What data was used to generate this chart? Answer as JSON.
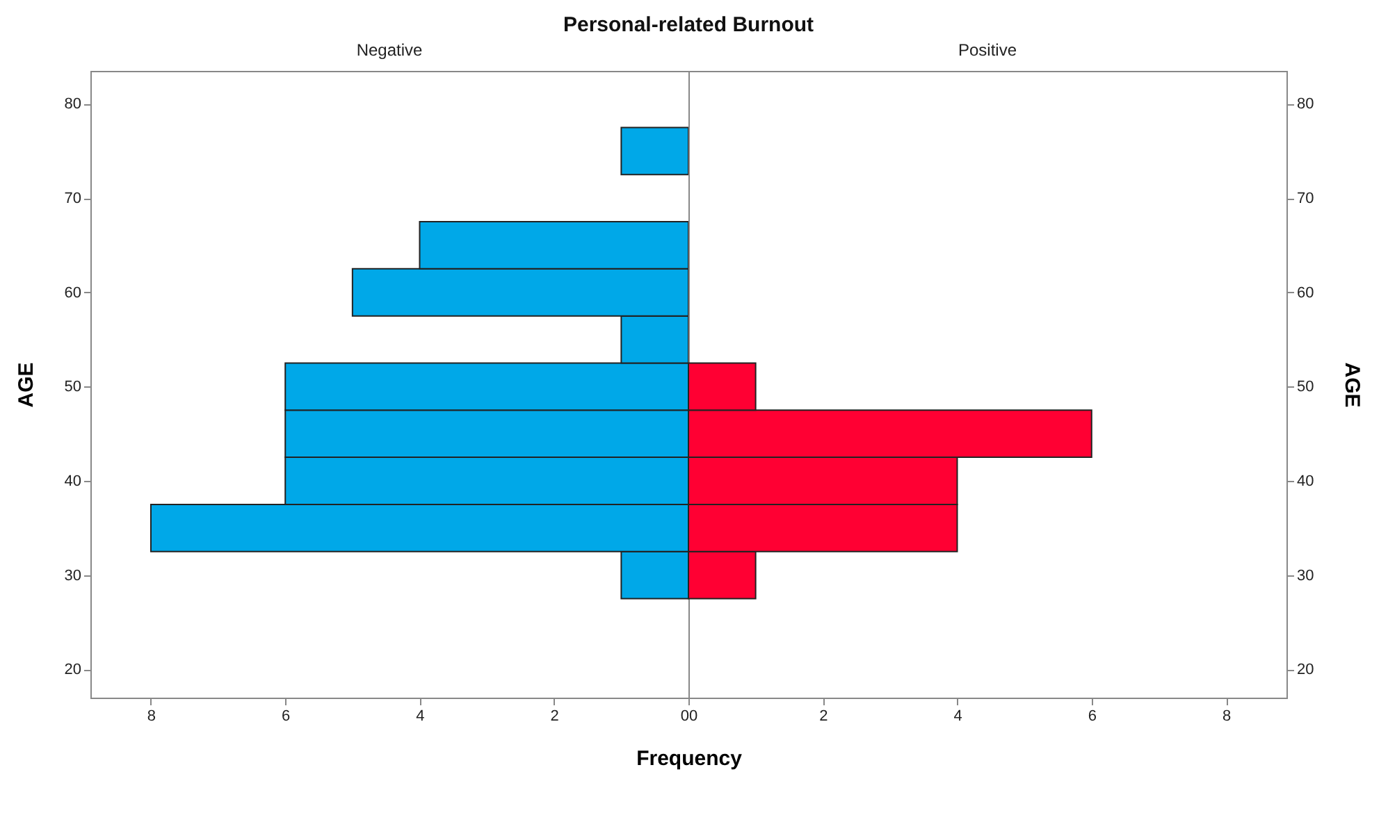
{
  "chart_data": [
    {
      "type": "histogram",
      "title": "Personal-related Burnout",
      "subtitle": "Negative",
      "ylabel": "AGE",
      "orientation": "horizontal",
      "bins": [
        27.5,
        32.5,
        37.5,
        42.5,
        47.5,
        52.5,
        57.5,
        62.5,
        67.5,
        72.5,
        77.5
      ],
      "values": [
        1,
        8,
        6,
        6,
        6,
        1,
        5,
        4,
        0,
        1
      ],
      "color": "#00a8e8",
      "xlim": [
        8.9,
        0
      ],
      "xticks": [
        8,
        6,
        4,
        2,
        0
      ],
      "ylim": [
        17,
        83.5
      ],
      "yticks": [
        20,
        30,
        40,
        50,
        60,
        70,
        80
      ],
      "grid": false
    },
    {
      "type": "histogram",
      "subtitle": "Positive",
      "ylabel": "AGE",
      "xlabel": "Frequency",
      "orientation": "horizontal",
      "bins": [
        27.5,
        32.5,
        37.5,
        42.5,
        47.5,
        52.5,
        57.5,
        62.5,
        67.5,
        72.5,
        77.5
      ],
      "values": [
        1,
        4,
        4,
        6,
        1,
        0,
        0,
        0,
        0,
        0
      ],
      "color": "#ff0033",
      "xlim": [
        0,
        8.9
      ],
      "xticks": [
        0,
        2,
        4,
        6,
        8
      ],
      "ylim": [
        17,
        83.5
      ],
      "yticks": [
        20,
        30,
        40,
        50,
        60,
        70,
        80
      ],
      "grid": false
    }
  ]
}
